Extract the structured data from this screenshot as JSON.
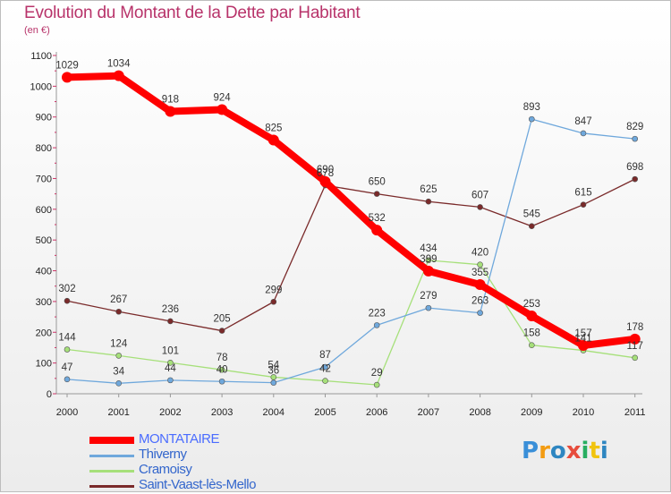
{
  "title": "Evolution du Montant de la Dette par Habitant",
  "unit": "(en €)",
  "logo": "Proxiti",
  "chart_data": {
    "type": "line",
    "title": "Evolution du Montant de la Dette par Habitant",
    "ylabel": "(en €)",
    "x": [
      "2000",
      "2001",
      "2002",
      "2003",
      "2004",
      "2005",
      "2006",
      "2007",
      "2008",
      "2009",
      "2010",
      "2011"
    ],
    "ylim": [
      0,
      1100
    ],
    "yticks": [
      "0",
      "100",
      "200",
      "300",
      "400",
      "500",
      "600",
      "700",
      "800",
      "900",
      "1000",
      "1100"
    ],
    "grid": false,
    "legend": "bottom-left",
    "series": [
      {
        "name": "MONTATAIRE",
        "color": "#ff0000",
        "values": [
          1029,
          1034,
          918,
          924,
          825,
          690,
          532,
          399,
          355,
          253,
          157,
          178
        ],
        "labels": [
          "1029",
          "1034",
          "918",
          "924",
          "825",
          "690",
          "532",
          "399",
          "355",
          "253",
          "157",
          "178"
        ]
      },
      {
        "name": "Thiverny",
        "color": "#6fa8dc",
        "values": [
          47,
          34,
          44,
          40,
          36,
          87,
          223,
          279,
          263,
          893,
          847,
          829
        ],
        "labels": [
          "47",
          "34",
          "44",
          "40",
          "36",
          "87",
          "223",
          "279",
          "263",
          "893",
          "847",
          "829"
        ]
      },
      {
        "name": "Cramoisy",
        "color": "#a6e07a",
        "values": [
          144,
          124,
          101,
          78,
          54,
          42,
          29,
          434,
          420,
          158,
          141,
          117
        ],
        "labels": [
          "144",
          "124",
          "101",
          "78",
          "54",
          "42",
          "29",
          "434",
          "420",
          "158",
          "141",
          "117"
        ]
      },
      {
        "name": "Saint-Vaast-lès-Mello",
        "color": "#7a2a2a",
        "values": [
          302,
          267,
          236,
          205,
          299,
          678,
          650,
          625,
          607,
          545,
          615,
          698
        ],
        "labels": [
          "302",
          "267",
          "236",
          "205",
          "299",
          "678",
          "650",
          "625",
          "607",
          "545",
          "615",
          "698"
        ]
      }
    ]
  }
}
